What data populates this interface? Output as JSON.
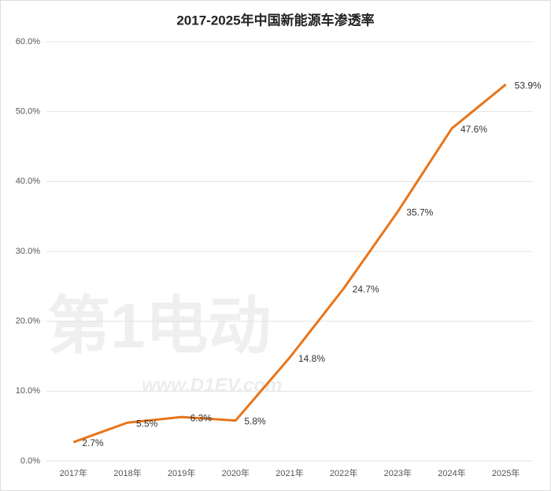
{
  "chart_data": {
    "type": "line",
    "title": "2017-2025年中国新能源车渗透率",
    "categories": [
      "2017年",
      "2018年",
      "2019年",
      "2020年",
      "2021年",
      "2022年",
      "2023年",
      "2024年",
      "2025年"
    ],
    "series": [
      {
        "name": "渗透率",
        "color": "#e8751a",
        "values": [
          2.7,
          5.5,
          6.3,
          5.8,
          14.8,
          24.7,
          35.7,
          47.6,
          53.9
        ],
        "value_labels": [
          "2.7%",
          "5.5%",
          "6.3%",
          "5.8%",
          "14.8%",
          "24.7%",
          "35.7%",
          "47.6%",
          "53.9%"
        ]
      }
    ],
    "ylim": [
      0,
      60
    ],
    "yticks": [
      {
        "value": 0,
        "label": "0.0%"
      },
      {
        "value": 10,
        "label": "10.0%"
      },
      {
        "value": 20,
        "label": "20.0%"
      },
      {
        "value": 30,
        "label": "30.0%"
      },
      {
        "value": 40,
        "label": "40.0%"
      },
      {
        "value": 50,
        "label": "50.0%"
      },
      {
        "value": 60,
        "label": "60.0%"
      }
    ],
    "grid": true,
    "watermark": {
      "logo": "第1电动",
      "url": "www.D1EV.com"
    }
  }
}
